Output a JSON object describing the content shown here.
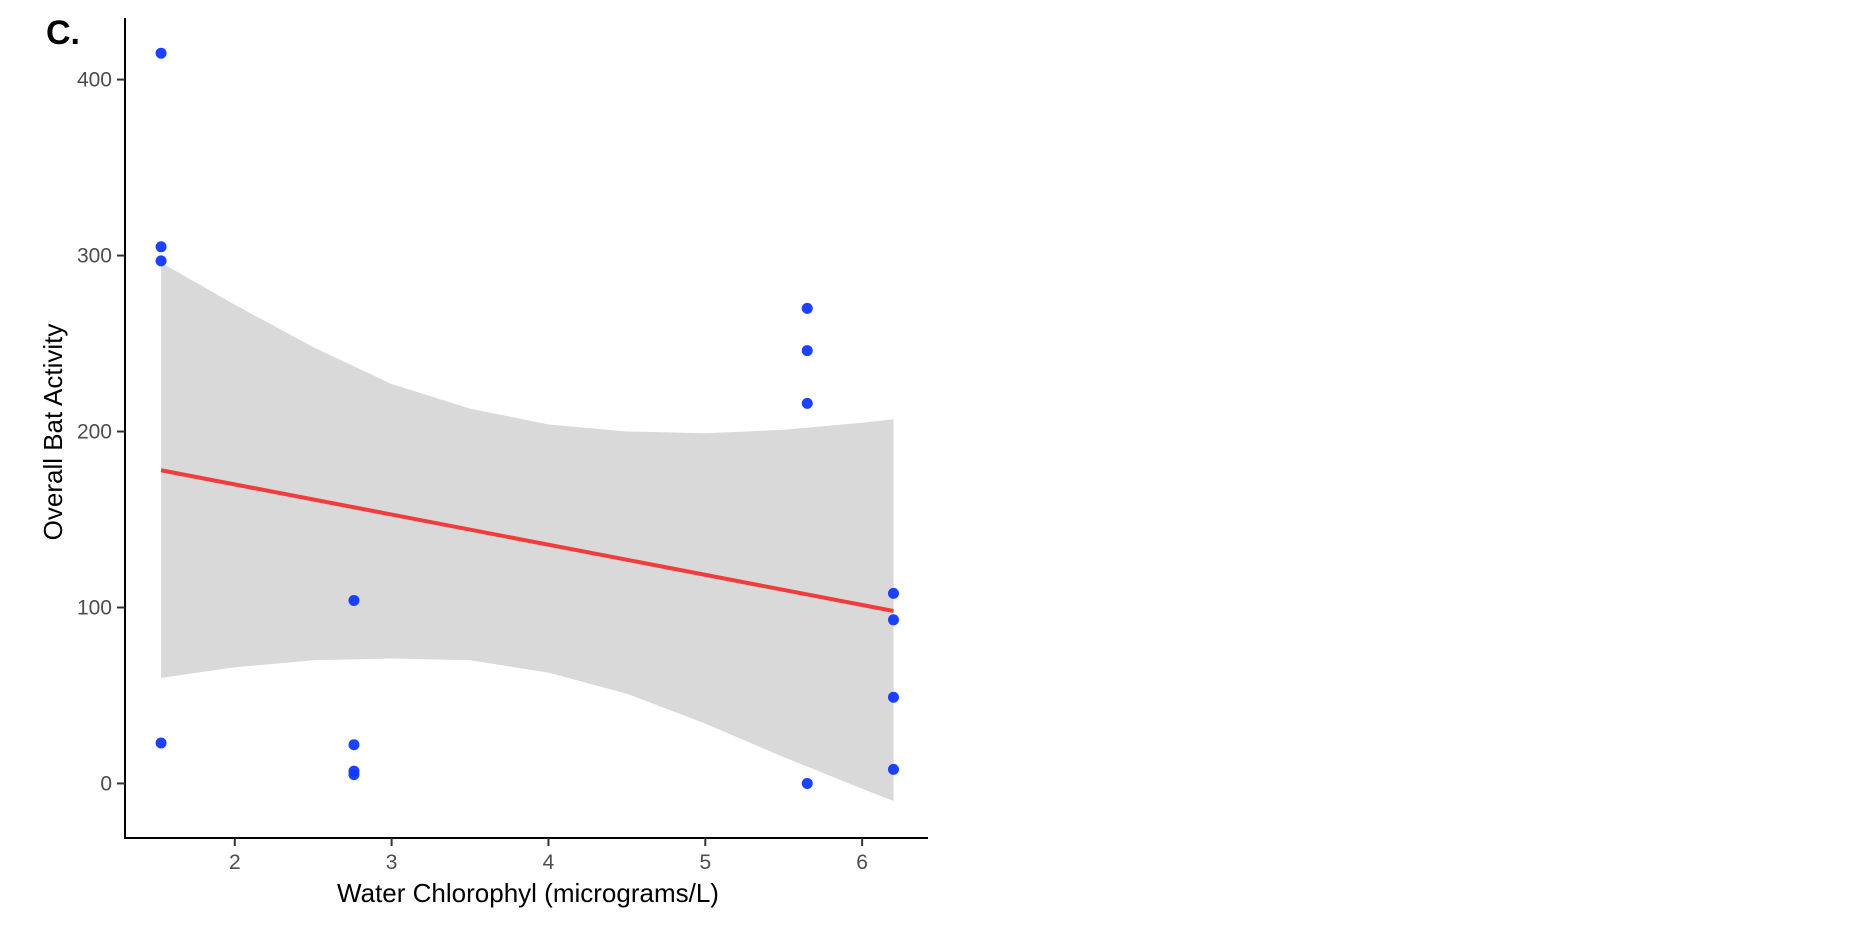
{
  "chart_data": {
    "type": "scatter",
    "panel_label": "C.",
    "xlabel": "Water Chlorophyl (micrograms/L)",
    "ylabel": "Overall Bat Activity",
    "xlim": [
      1.3,
      6.42
    ],
    "ylim": [
      -31,
      435
    ],
    "x_ticks": [
      2,
      3,
      4,
      5,
      6
    ],
    "y_ticks": [
      0,
      100,
      200,
      300,
      400
    ],
    "grid": false,
    "legend": "none",
    "colors": {
      "points": "#1038ff",
      "fit_line": "#f23b3b",
      "ci_band": "#d9d9d9",
      "axis": "#000000"
    },
    "points": [
      {
        "x": 1.53,
        "y": 415
      },
      {
        "x": 1.53,
        "y": 305
      },
      {
        "x": 1.53,
        "y": 297
      },
      {
        "x": 1.53,
        "y": 23
      },
      {
        "x": 2.76,
        "y": 104
      },
      {
        "x": 2.76,
        "y": 22
      },
      {
        "x": 2.76,
        "y": 7
      },
      {
        "x": 2.76,
        "y": 5
      },
      {
        "x": 5.65,
        "y": 270
      },
      {
        "x": 5.65,
        "y": 246
      },
      {
        "x": 5.65,
        "y": 216
      },
      {
        "x": 5.65,
        "y": 0
      },
      {
        "x": 6.2,
        "y": 108
      },
      {
        "x": 6.2,
        "y": 93
      },
      {
        "x": 6.2,
        "y": 49
      },
      {
        "x": 6.2,
        "y": 8
      }
    ],
    "fit_line": {
      "x": [
        1.53,
        6.2
      ],
      "y": [
        178,
        98
      ]
    },
    "confidence_band": {
      "x": [
        1.53,
        2.0,
        2.5,
        3.0,
        3.5,
        4.0,
        4.5,
        5.0,
        5.5,
        6.0,
        6.2
      ],
      "upper": [
        296,
        272,
        248,
        227,
        213,
        204,
        200,
        199,
        201,
        205,
        207
      ],
      "lower": [
        60,
        66,
        70,
        71,
        70,
        63,
        51,
        34,
        15,
        -3,
        -10
      ]
    }
  }
}
